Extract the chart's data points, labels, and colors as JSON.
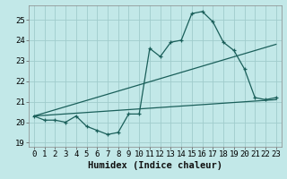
{
  "xlabel": "Humidex (Indice chaleur)",
  "bg_color": "#c2e8e8",
  "grid_color": "#a0cccc",
  "line_color": "#1a5f5a",
  "xlim": [
    -0.5,
    23.5
  ],
  "ylim": [
    18.8,
    25.7
  ],
  "yticks": [
    19,
    20,
    21,
    22,
    23,
    24,
    25
  ],
  "xticks": [
    0,
    1,
    2,
    3,
    4,
    5,
    6,
    7,
    8,
    9,
    10,
    11,
    12,
    13,
    14,
    15,
    16,
    17,
    18,
    19,
    20,
    21,
    22,
    23
  ],
  "line1_x": [
    0,
    1,
    2,
    3,
    4,
    5,
    6,
    7,
    8,
    9,
    10,
    11,
    12,
    13,
    14,
    15,
    16,
    17,
    18,
    19,
    20,
    21,
    22,
    23
  ],
  "line1_y": [
    20.3,
    20.1,
    20.1,
    20.0,
    20.3,
    19.8,
    19.6,
    19.4,
    19.5,
    20.4,
    20.4,
    23.6,
    23.2,
    23.9,
    24.0,
    25.3,
    25.4,
    24.9,
    23.9,
    23.5,
    22.6,
    21.2,
    21.1,
    21.2
  ],
  "line2_x": [
    0,
    23
  ],
  "line2_y": [
    20.3,
    23.8
  ],
  "line3_x": [
    0,
    23
  ],
  "line3_y": [
    20.3,
    21.1
  ],
  "xlabel_fontsize": 7.5,
  "tick_fontsize": 6.5
}
